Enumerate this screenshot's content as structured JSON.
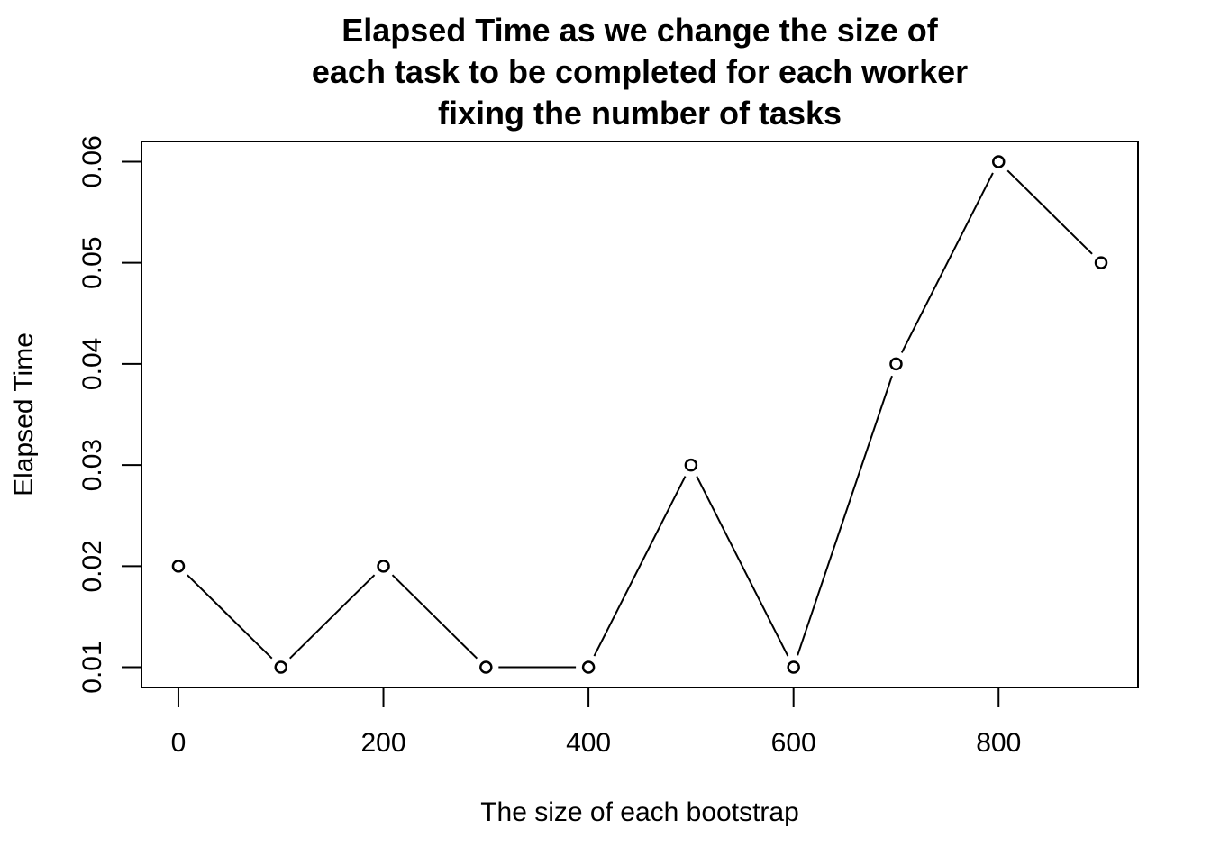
{
  "chart_data": {
    "type": "line",
    "title_lines": [
      "Elapsed Time as we change the size of",
      "each task to be completed for each worker",
      "fixing the number of tasks"
    ],
    "xlabel": "The size of each bootstrap",
    "ylabel": "Elapsed Time",
    "x": [
      0,
      100,
      200,
      300,
      400,
      500,
      600,
      700,
      800,
      900
    ],
    "y": [
      0.02,
      0.01,
      0.02,
      0.01,
      0.01,
      0.03,
      0.01,
      0.04,
      0.06,
      0.05
    ],
    "xticks": [
      0,
      200,
      400,
      600,
      800
    ],
    "xtick_labels": [
      "0",
      "200",
      "400",
      "600",
      "800"
    ],
    "yticks": [
      0.01,
      0.02,
      0.03,
      0.04,
      0.05,
      0.06
    ],
    "ytick_labels": [
      "0.01",
      "0.02",
      "0.03",
      "0.04",
      "0.05",
      "0.06"
    ],
    "xlim": [
      -36,
      936
    ],
    "ylim": [
      0.008,
      0.062
    ],
    "marker": "open-circle",
    "line_color": "#000000",
    "grid": false,
    "legend": "none"
  }
}
